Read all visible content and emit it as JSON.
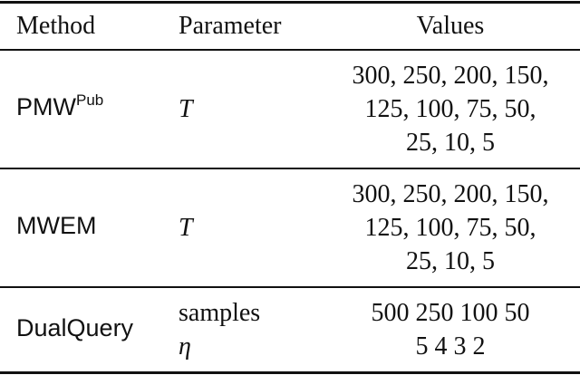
{
  "header": [
    "Method",
    "Parameter",
    "Values"
  ],
  "rows": [
    {
      "method": {
        "name": "PMW",
        "sup": "Pub"
      },
      "parameters": [
        "T"
      ],
      "values": [
        "300, 250, 200, 150,",
        "125, 100, 75, 50,",
        "25, 10, 5"
      ]
    },
    {
      "method": {
        "name": "MWEM"
      },
      "parameters": [
        "T"
      ],
      "values": [
        "300, 250, 200, 150,",
        "125, 100, 75, 50,",
        "25, 10, 5"
      ]
    },
    {
      "method": {
        "name": "DualQuery"
      },
      "parameters": [
        "samples",
        "η"
      ],
      "values": [
        "500 250 100 50",
        "5 4 3 2"
      ]
    }
  ]
}
